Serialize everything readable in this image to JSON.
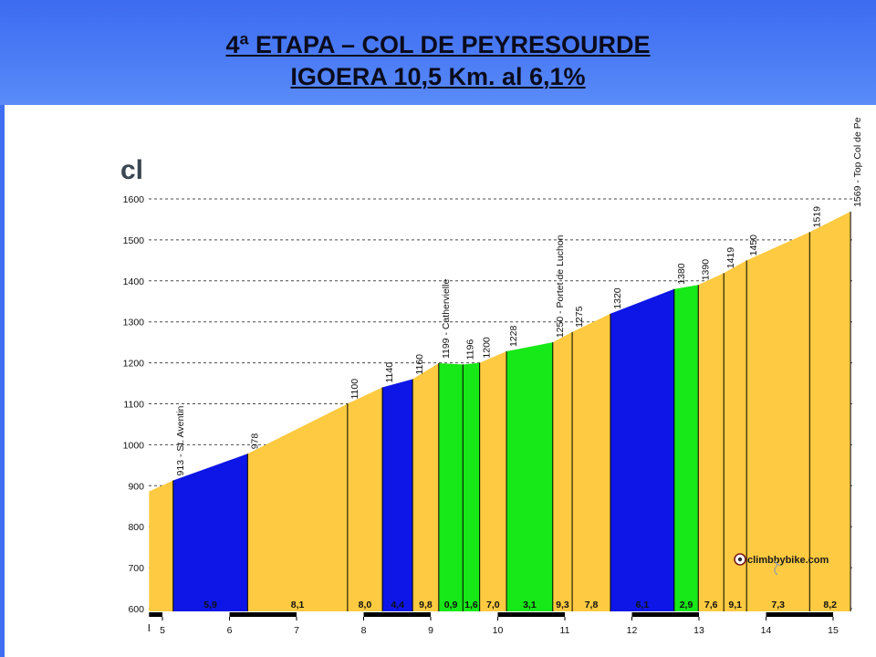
{
  "header": {
    "title": "4ª ETAPA – COL DE PEYRESOURDE",
    "subtitle": "IGOERA 10,5 Km. al 6,1%"
  },
  "logo": {
    "fragment": "cl",
    "text": "climbbybike.com"
  },
  "colors": {
    "header_blue": "#4b7cf5",
    "profile_yellow": "#fdca41",
    "profile_blue": "#0d16e6",
    "profile_green": "#17e817"
  },
  "chart_data": {
    "type": "area",
    "grid": true,
    "xlim": [
      4.8,
      15.3
    ],
    "ylim": [
      600,
      1600
    ],
    "x_ticks": [
      5,
      6,
      7,
      8,
      9,
      10,
      11,
      12,
      13,
      14,
      15
    ],
    "y_ticks": [
      600,
      700,
      800,
      900,
      1000,
      1100,
      1200,
      1300,
      1400,
      1500,
      1600
    ],
    "points": [
      {
        "km": 4.8,
        "elevation": 886
      },
      {
        "km": 5.16,
        "elevation": 913,
        "label": "913 - St. Aventin"
      },
      {
        "km": 6.27,
        "elevation": 978,
        "label": "978"
      },
      {
        "km": 7.76,
        "elevation": 1100,
        "label": "1100"
      },
      {
        "km": 8.28,
        "elevation": 1140,
        "label": "1140"
      },
      {
        "km": 8.73,
        "elevation": 1160,
        "label": "1160"
      },
      {
        "km": 9.12,
        "elevation": 1199,
        "label": "1199 - Cathervielle"
      },
      {
        "km": 9.48,
        "elevation": 1196,
        "label": "1196"
      },
      {
        "km": 9.73,
        "elevation": 1200,
        "label": "1200"
      },
      {
        "km": 10.13,
        "elevation": 1228,
        "label": "1228"
      },
      {
        "km": 10.82,
        "elevation": 1250,
        "label": "1250 - Portet de Luchon"
      },
      {
        "km": 11.11,
        "elevation": 1275,
        "label": "1275"
      },
      {
        "km": 11.68,
        "elevation": 1320,
        "label": "1320"
      },
      {
        "km": 12.63,
        "elevation": 1380,
        "label": "1380"
      },
      {
        "km": 12.99,
        "elevation": 1390,
        "label": "1390"
      },
      {
        "km": 13.37,
        "elevation": 1419,
        "label": "1419"
      },
      {
        "km": 13.71,
        "elevation": 1450,
        "label": "1450"
      },
      {
        "km": 14.65,
        "elevation": 1519,
        "label": "1519"
      },
      {
        "km": 15.26,
        "elevation": 1569,
        "label": "1569 - Top Col de Pe"
      }
    ],
    "segments": [
      {
        "color": "#fdca41"
      },
      {
        "grade": "5,9",
        "color": "#0d16e6"
      },
      {
        "grade": "8,1",
        "color": "#fdca41"
      },
      {
        "grade": "8,0",
        "color": "#fdca41"
      },
      {
        "grade": "4,4",
        "color": "#0d16e6"
      },
      {
        "grade": "9,8",
        "color": "#fdca41"
      },
      {
        "grade": "0,9",
        "color": "#17e817"
      },
      {
        "grade": "1,6",
        "color": "#17e817"
      },
      {
        "grade": "7,0",
        "color": "#fdca41"
      },
      {
        "grade": "3,1",
        "color": "#17e817"
      },
      {
        "grade": "9,3",
        "color": "#fdca41"
      },
      {
        "grade": "7,8",
        "color": "#fdca41"
      },
      {
        "grade": "6,1",
        "color": "#0d16e6"
      },
      {
        "grade": "2,9",
        "color": "#17e817"
      },
      {
        "grade": "7,6",
        "color": "#fdca41"
      },
      {
        "grade": "9,1",
        "color": "#fdca41"
      },
      {
        "grade": "7,3",
        "color": "#fdca41"
      },
      {
        "grade": "8,2",
        "color": "#fdca41"
      }
    ]
  }
}
